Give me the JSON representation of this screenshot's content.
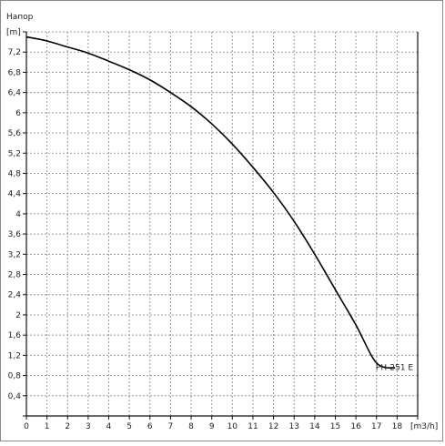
{
  "chart_data": {
    "type": "line",
    "title": "Напор",
    "ylabel": "[m]",
    "xlabel": "[m3/h]",
    "xlim": [
      0,
      19
    ],
    "ylim": [
      0,
      7.6
    ],
    "x_ticks": [
      0,
      1,
      2,
      3,
      4,
      5,
      6,
      7,
      8,
      9,
      10,
      11,
      12,
      13,
      14,
      15,
      16,
      17,
      18
    ],
    "y_ticks": [
      "0,4",
      "0,8",
      "1,2",
      "1,6",
      "2",
      "2,4",
      "2,8",
      "3,2",
      "3,6",
      "4",
      "4,4",
      "4,8",
      "5,2",
      "5,6",
      "6",
      "6,4",
      "6,8",
      "7,2"
    ],
    "y_tick_values": [
      0.4,
      0.8,
      1.2,
      1.6,
      2.0,
      2.4,
      2.8,
      3.2,
      3.6,
      4.0,
      4.4,
      4.8,
      5.2,
      5.6,
      6.0,
      6.4,
      6.8,
      7.2
    ],
    "grid": true,
    "series": [
      {
        "name": "PH-251 E",
        "x": [
          0,
          1,
          2,
          3,
          4,
          5,
          6,
          7,
          8,
          9,
          10,
          11,
          12,
          13,
          14,
          15,
          16,
          17,
          17.9
        ],
        "y": [
          7.5,
          7.42,
          7.3,
          7.18,
          7.02,
          6.85,
          6.65,
          6.4,
          6.12,
          5.78,
          5.38,
          4.92,
          4.42,
          3.85,
          3.2,
          2.5,
          1.8,
          1.05,
          0.95
        ]
      }
    ]
  }
}
